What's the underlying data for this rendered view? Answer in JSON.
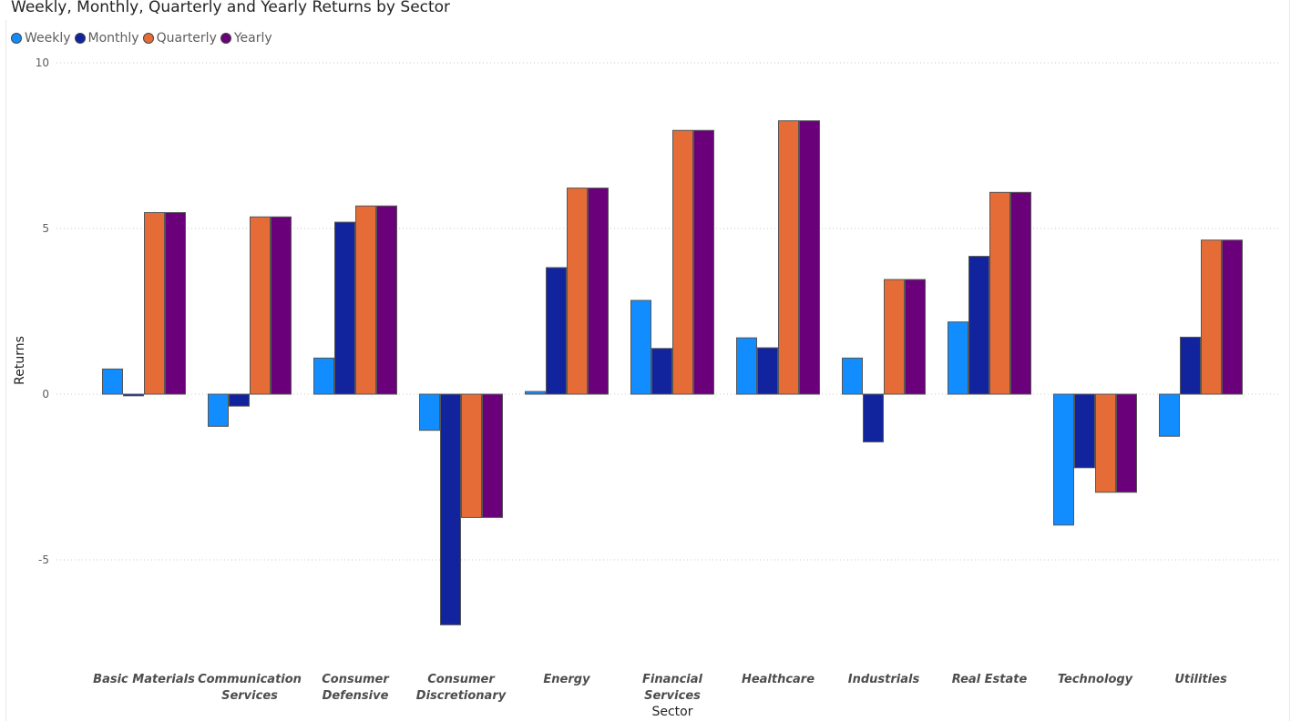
{
  "chart_data": {
    "type": "bar",
    "title": "Weekly, Monthly, Quarterly and Yearly Returns by Sector",
    "xlabel": "Sector",
    "ylabel": "Returns",
    "ylim": [
      -8.5,
      10
    ],
    "yticks": [
      10,
      5,
      0,
      -5
    ],
    "ytick_labels": [
      "10",
      "5",
      "0",
      "-5"
    ],
    "grid": true,
    "legend_position": "top-left",
    "categories": [
      [
        "Basic Materials"
      ],
      [
        "Communication",
        "Services"
      ],
      [
        "Consumer",
        "Defensive"
      ],
      [
        "Consumer",
        "Discretionary"
      ],
      [
        "Energy"
      ],
      [
        "Financial",
        "Services"
      ],
      [
        "Healthcare"
      ],
      [
        "Industrials"
      ],
      [
        "Real Estate"
      ],
      [
        "Technology"
      ],
      [
        "Utilities"
      ]
    ],
    "series": [
      {
        "name": "Weekly",
        "color": "#118dff",
        "values": [
          0.76,
          -0.97,
          1.09,
          -1.09,
          0.08,
          2.83,
          1.7,
          1.09,
          2.18,
          -3.95,
          -1.27
        ]
      },
      {
        "name": "Monthly",
        "color": "#12239e",
        "values": [
          -0.05,
          -0.36,
          5.19,
          -6.96,
          3.82,
          1.38,
          1.4,
          -1.44,
          4.16,
          -2.22,
          1.72
        ]
      },
      {
        "name": "Quarterly",
        "color": "#e66c37",
        "values": [
          5.48,
          5.35,
          5.68,
          -3.72,
          6.22,
          7.96,
          8.25,
          3.46,
          6.09,
          -2.96,
          4.65
        ]
      },
      {
        "name": "Yearly",
        "color": "#6b007b",
        "values": [
          5.48,
          5.35,
          5.68,
          -3.72,
          6.22,
          7.96,
          8.25,
          3.46,
          6.09,
          -2.96,
          4.65
        ]
      }
    ]
  }
}
